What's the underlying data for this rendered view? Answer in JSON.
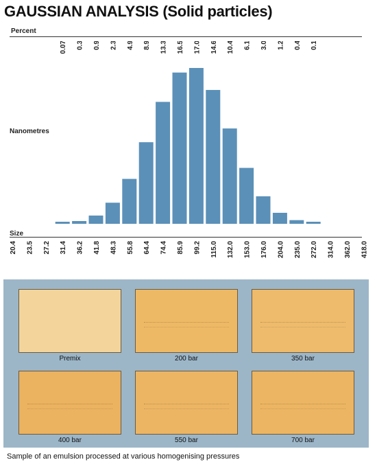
{
  "title": "GAUSSIAN ANALYSIS (Solid particles)",
  "labels": {
    "percent": "Percent",
    "nanometres": "Nanometres",
    "size": "Size"
  },
  "chart_data": {
    "type": "bar",
    "title": "GAUSSIAN ANALYSIS (Solid particles)",
    "xlabel": "Size",
    "ylabel": "Percent",
    "categories": [
      "20.4",
      "23.5",
      "27.2",
      "31.4",
      "36.2",
      "41.8",
      "48.3",
      "55.8",
      "64.4",
      "74.4",
      "85.9",
      "99.2",
      "115.0",
      "132.0",
      "153.0",
      "176.0",
      "204.0",
      "235.0",
      "272.0",
      "314.0",
      "362.0",
      "418.0"
    ],
    "percent_labels": [
      "0.07",
      "0.3",
      "0.9",
      "2.3",
      "4.9",
      "8.9",
      "13.3",
      "16.5",
      "17.0",
      "14.6",
      "10.4",
      "6.1",
      "3.0",
      "1.2",
      "0.4",
      "0.1"
    ],
    "values": [
      null,
      null,
      null,
      0.07,
      0.3,
      0.9,
      2.3,
      4.9,
      8.9,
      13.3,
      16.5,
      17.0,
      14.6,
      10.4,
      6.1,
      3.0,
      1.2,
      0.4,
      0.1,
      null,
      null,
      null
    ],
    "ylim": [
      0,
      17.0
    ],
    "bar_color": "#5b90b8",
    "grid": false,
    "legend": "none"
  },
  "photos": {
    "background": "#9cb6c8",
    "items": [
      {
        "label": "Premix",
        "color": "#f3d59c"
      },
      {
        "label": "200 bar",
        "color": "#eeb965"
      },
      {
        "label": "350 bar",
        "color": "#eebb6c"
      },
      {
        "label": "400 bar",
        "color": "#ebb260"
      },
      {
        "label": "550 bar",
        "color": "#ecb564"
      },
      {
        "label": "700 bar",
        "color": "#ecb563"
      }
    ]
  },
  "caption": "Sample of an emulsion processed at various homogenising pressures"
}
